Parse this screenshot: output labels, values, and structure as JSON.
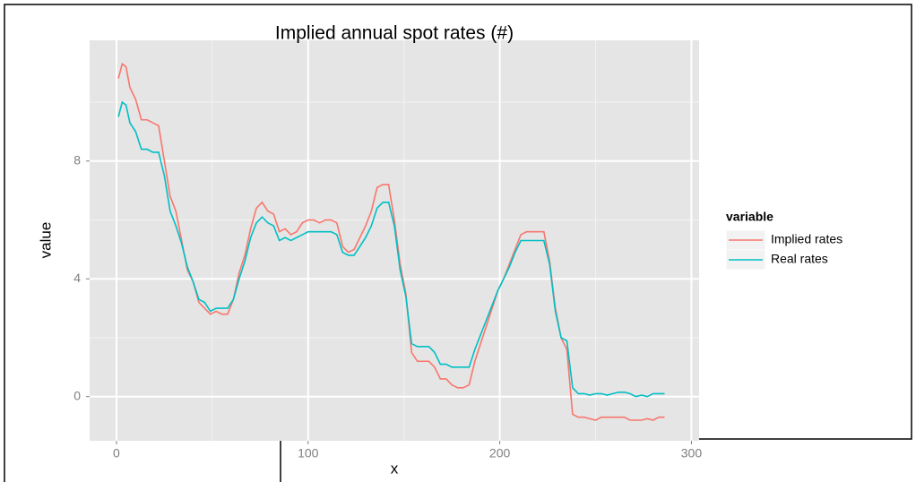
{
  "chart_data": {
    "type": "line",
    "title": "Implied annual spot rates (#)",
    "x_label": "x",
    "y_label": "value",
    "legend_title": "variable",
    "legend_position": "right",
    "x": [
      1,
      3,
      5,
      7,
      10,
      13,
      16,
      19,
      22,
      25,
      28,
      31,
      34,
      37,
      40,
      43,
      46,
      49,
      52,
      55,
      58,
      61,
      64,
      67,
      70,
      73,
      76,
      79,
      82,
      85,
      88,
      91,
      94,
      97,
      100,
      103,
      106,
      109,
      112,
      115,
      118,
      121,
      124,
      127,
      130,
      133,
      136,
      139,
      142,
      145,
      148,
      151,
      154,
      157,
      160,
      163,
      166,
      169,
      172,
      175,
      178,
      181,
      184,
      187,
      190,
      193,
      196,
      199,
      202,
      205,
      208,
      211,
      214,
      217,
      220,
      223,
      226,
      229,
      232,
      235,
      238,
      241,
      244,
      247,
      250,
      253,
      256,
      259,
      262,
      265,
      268,
      271,
      274,
      277,
      280,
      283,
      286
    ],
    "series": [
      {
        "name": "Implied rates",
        "color": "#f8766d",
        "values": [
          10.8,
          11.3,
          11.2,
          10.5,
          10.1,
          9.4,
          9.4,
          9.3,
          9.2,
          8.0,
          6.8,
          6.3,
          5.3,
          4.3,
          3.9,
          3.2,
          3.0,
          2.8,
          2.9,
          2.8,
          2.8,
          3.3,
          4.2,
          4.8,
          5.7,
          6.4,
          6.6,
          6.3,
          6.2,
          5.6,
          5.7,
          5.5,
          5.6,
          5.9,
          6.0,
          6.0,
          5.9,
          6.0,
          6.0,
          5.9,
          5.1,
          4.9,
          5.0,
          5.4,
          5.8,
          6.3,
          7.1,
          7.2,
          7.2,
          6.0,
          4.5,
          3.5,
          1.5,
          1.2,
          1.2,
          1.2,
          1.0,
          0.6,
          0.6,
          0.4,
          0.3,
          0.3,
          0.4,
          1.2,
          1.8,
          2.4,
          3.0,
          3.6,
          4.0,
          4.5,
          5.0,
          5.5,
          5.6,
          5.6,
          5.6,
          5.6,
          4.6,
          3.0,
          2.0,
          1.6,
          -0.6,
          -0.7,
          -0.7,
          -0.75,
          -0.8,
          -0.7,
          -0.7,
          -0.7,
          -0.7,
          -0.7,
          -0.8,
          -0.8,
          -0.8,
          -0.75,
          -0.8,
          -0.7,
          -0.7
        ]
      },
      {
        "name": "Real rates",
        "color": "#00bfc4",
        "values": [
          9.5,
          10.0,
          9.9,
          9.3,
          9.0,
          8.4,
          8.4,
          8.3,
          8.3,
          7.5,
          6.3,
          5.8,
          5.2,
          4.4,
          3.9,
          3.3,
          3.2,
          2.9,
          3.0,
          3.0,
          3.0,
          3.3,
          4.0,
          4.6,
          5.4,
          5.9,
          6.1,
          5.9,
          5.8,
          5.3,
          5.4,
          5.3,
          5.4,
          5.5,
          5.6,
          5.6,
          5.6,
          5.6,
          5.6,
          5.5,
          4.9,
          4.8,
          4.8,
          5.1,
          5.4,
          5.8,
          6.4,
          6.6,
          6.6,
          5.8,
          4.3,
          3.4,
          1.8,
          1.7,
          1.7,
          1.7,
          1.5,
          1.1,
          1.1,
          1.0,
          1.0,
          1.0,
          1.0,
          1.6,
          2.1,
          2.6,
          3.1,
          3.6,
          4.0,
          4.4,
          4.9,
          5.3,
          5.3,
          5.3,
          5.3,
          5.3,
          4.5,
          2.9,
          2.0,
          1.9,
          0.3,
          0.1,
          0.1,
          0.05,
          0.1,
          0.1,
          0.05,
          0.1,
          0.15,
          0.15,
          0.1,
          0.0,
          0.05,
          0.0,
          0.1,
          0.1,
          0.1
        ]
      }
    ],
    "xlim": [
      -14,
      304
    ],
    "ylim": [
      -1.5,
      12.1
    ],
    "xticks": [
      0,
      100,
      200,
      300
    ],
    "yticks": [
      0,
      4,
      8
    ],
    "minor_xticks": [
      50,
      150,
      250
    ],
    "minor_yticks": [
      2,
      6,
      10
    ],
    "grid": true
  }
}
